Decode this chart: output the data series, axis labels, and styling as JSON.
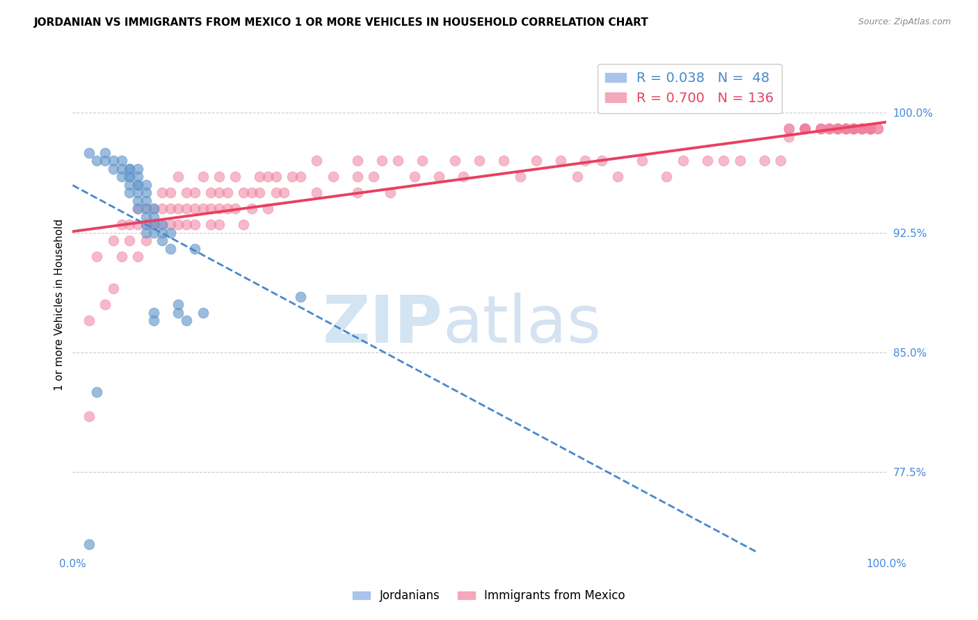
{
  "title": "JORDANIAN VS IMMIGRANTS FROM MEXICO 1 OR MORE VEHICLES IN HOUSEHOLD CORRELATION CHART",
  "source": "Source: ZipAtlas.com",
  "ylabel": "1 or more Vehicles in Household",
  "ytick_labels": [
    "77.5%",
    "85.0%",
    "92.5%",
    "100.0%"
  ],
  "ytick_values": [
    0.775,
    0.85,
    0.925,
    1.0
  ],
  "xlim": [
    0.0,
    1.0
  ],
  "ylim": [
    0.725,
    1.035
  ],
  "jordanian_color": "#6699cc",
  "mexico_color": "#f080a0",
  "trendline_jordan_color": "#4488cc",
  "trendline_mexico_color": "#e84060",
  "jordanian_x": [
    0.02,
    0.03,
    0.04,
    0.04,
    0.05,
    0.05,
    0.06,
    0.06,
    0.06,
    0.07,
    0.07,
    0.07,
    0.07,
    0.07,
    0.07,
    0.08,
    0.08,
    0.08,
    0.08,
    0.08,
    0.08,
    0.08,
    0.09,
    0.09,
    0.09,
    0.09,
    0.09,
    0.09,
    0.09,
    0.1,
    0.1,
    0.1,
    0.1,
    0.1,
    0.1,
    0.11,
    0.11,
    0.11,
    0.12,
    0.12,
    0.13,
    0.13,
    0.14,
    0.15,
    0.16,
    0.03,
    0.02,
    0.28
  ],
  "jordanian_y": [
    0.975,
    0.97,
    0.975,
    0.97,
    0.97,
    0.965,
    0.965,
    0.97,
    0.96,
    0.965,
    0.96,
    0.955,
    0.95,
    0.965,
    0.96,
    0.955,
    0.955,
    0.95,
    0.945,
    0.94,
    0.96,
    0.965,
    0.945,
    0.94,
    0.935,
    0.93,
    0.925,
    0.95,
    0.955,
    0.935,
    0.925,
    0.93,
    0.94,
    0.875,
    0.87,
    0.925,
    0.93,
    0.92,
    0.925,
    0.915,
    0.88,
    0.875,
    0.87,
    0.915,
    0.875,
    0.825,
    0.73,
    0.885
  ],
  "mexico_x": [
    0.02,
    0.02,
    0.03,
    0.04,
    0.05,
    0.05,
    0.06,
    0.06,
    0.07,
    0.07,
    0.08,
    0.08,
    0.08,
    0.09,
    0.09,
    0.09,
    0.1,
    0.1,
    0.1,
    0.11,
    0.11,
    0.11,
    0.12,
    0.12,
    0.12,
    0.13,
    0.13,
    0.13,
    0.14,
    0.14,
    0.14,
    0.15,
    0.15,
    0.15,
    0.16,
    0.16,
    0.17,
    0.17,
    0.17,
    0.18,
    0.18,
    0.18,
    0.18,
    0.19,
    0.19,
    0.2,
    0.2,
    0.21,
    0.21,
    0.22,
    0.22,
    0.23,
    0.23,
    0.24,
    0.24,
    0.25,
    0.25,
    0.26,
    0.27,
    0.28,
    0.3,
    0.3,
    0.32,
    0.35,
    0.35,
    0.35,
    0.37,
    0.38,
    0.39,
    0.4,
    0.42,
    0.43,
    0.45,
    0.47,
    0.48,
    0.5,
    0.53,
    0.55,
    0.57,
    0.6,
    0.62,
    0.63,
    0.65,
    0.67,
    0.7,
    0.73,
    0.75,
    0.78,
    0.8,
    0.82,
    0.85,
    0.87,
    0.88,
    0.88,
    0.88,
    0.9,
    0.9,
    0.9,
    0.9,
    0.9,
    0.92,
    0.92,
    0.92,
    0.93,
    0.93,
    0.93,
    0.94,
    0.94,
    0.94,
    0.94,
    0.95,
    0.95,
    0.95,
    0.95,
    0.96,
    0.96,
    0.96,
    0.96,
    0.96,
    0.96,
    0.97,
    0.97,
    0.97,
    0.97,
    0.97,
    0.98,
    0.98,
    0.98,
    0.98,
    0.98,
    0.98,
    0.98,
    0.98,
    0.98,
    0.99,
    0.99
  ],
  "mexico_y": [
    0.87,
    0.81,
    0.91,
    0.88,
    0.89,
    0.92,
    0.91,
    0.93,
    0.92,
    0.93,
    0.91,
    0.93,
    0.94,
    0.92,
    0.93,
    0.94,
    0.93,
    0.94,
    0.93,
    0.93,
    0.94,
    0.95,
    0.93,
    0.94,
    0.95,
    0.93,
    0.94,
    0.96,
    0.93,
    0.94,
    0.95,
    0.93,
    0.94,
    0.95,
    0.94,
    0.96,
    0.94,
    0.95,
    0.93,
    0.95,
    0.94,
    0.93,
    0.96,
    0.95,
    0.94,
    0.96,
    0.94,
    0.95,
    0.93,
    0.95,
    0.94,
    0.95,
    0.96,
    0.94,
    0.96,
    0.95,
    0.96,
    0.95,
    0.96,
    0.96,
    0.97,
    0.95,
    0.96,
    0.97,
    0.95,
    0.96,
    0.96,
    0.97,
    0.95,
    0.97,
    0.96,
    0.97,
    0.96,
    0.97,
    0.96,
    0.97,
    0.97,
    0.96,
    0.97,
    0.97,
    0.96,
    0.97,
    0.97,
    0.96,
    0.97,
    0.96,
    0.97,
    0.97,
    0.97,
    0.97,
    0.97,
    0.97,
    0.985,
    0.99,
    0.99,
    0.99,
    0.99,
    0.99,
    0.99,
    0.99,
    0.99,
    0.99,
    0.99,
    0.99,
    0.99,
    0.99,
    0.99,
    0.99,
    0.99,
    0.99,
    0.99,
    0.99,
    0.99,
    0.99,
    0.99,
    0.99,
    0.99,
    0.99,
    0.99,
    0.99,
    0.99,
    0.99,
    0.99,
    0.99,
    0.99,
    0.99,
    0.99,
    0.99,
    0.99,
    0.99,
    0.99,
    0.99,
    0.99,
    0.99,
    0.99,
    0.99
  ]
}
